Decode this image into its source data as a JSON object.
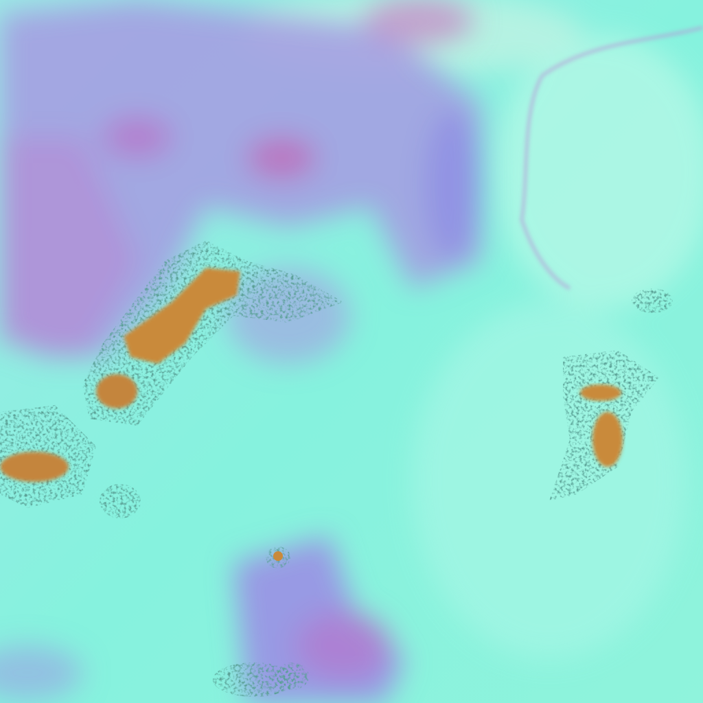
{
  "image": {
    "kind": "false-color satellite imagery",
    "colors": {
      "background": "#86f2de",
      "haze": "#b8f7e6",
      "land_purple": "#9a8fe0",
      "land_magenta": "#c07ac8",
      "storm_core": "#c98a3a",
      "storm_edge": "#1f6f5a"
    }
  }
}
